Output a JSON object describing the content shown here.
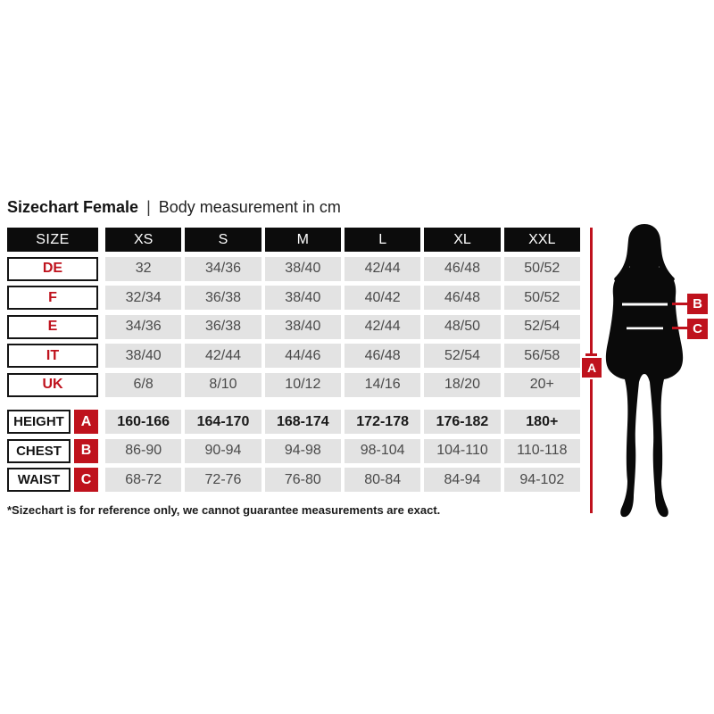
{
  "title": {
    "main": "Sizechart Female",
    "separator": "|",
    "subtitle": "Body measurement in cm"
  },
  "table": {
    "header": [
      "SIZE",
      "XS",
      "S",
      "M",
      "L",
      "XL",
      "XXL"
    ],
    "size_rows": [
      {
        "label": "DE",
        "values": [
          "32",
          "34/36",
          "38/40",
          "42/44",
          "46/48",
          "50/52"
        ]
      },
      {
        "label": "F",
        "values": [
          "32/34",
          "36/38",
          "38/40",
          "40/42",
          "46/48",
          "50/52"
        ]
      },
      {
        "label": "E",
        "values": [
          "34/36",
          "36/38",
          "38/40",
          "42/44",
          "48/50",
          "52/54"
        ]
      },
      {
        "label": "IT",
        "values": [
          "38/40",
          "42/44",
          "44/46",
          "46/48",
          "52/54",
          "56/58"
        ]
      },
      {
        "label": "UK",
        "values": [
          "6/8",
          "8/10",
          "10/12",
          "14/16",
          "18/20",
          "20+"
        ]
      }
    ],
    "body_rows": [
      {
        "label": "HEIGHT",
        "marker": "A",
        "bold": true,
        "values": [
          "160-166",
          "164-170",
          "168-174",
          "172-178",
          "176-182",
          "180+"
        ]
      },
      {
        "label": "CHEST",
        "marker": "B",
        "bold": false,
        "values": [
          "86-90",
          "90-94",
          "94-98",
          "98-104",
          "104-110",
          "110-118"
        ]
      },
      {
        "label": "WAIST",
        "marker": "C",
        "bold": false,
        "values": [
          "68-72",
          "72-76",
          "76-80",
          "80-84",
          "84-94",
          "94-102"
        ]
      }
    ]
  },
  "footnote": "*Sizechart is for reference only, we cannot guarantee measurements are exact.",
  "figure": {
    "markers": {
      "height": "A",
      "chest": "B",
      "waist": "C"
    }
  },
  "colors": {
    "accent_red": "#bf121d",
    "header_black": "#0c0c0c",
    "cell_gray": "#e3e3e3",
    "value_text": "#4a4a4a"
  },
  "chart_data": {
    "type": "table",
    "title": "Sizechart Female | Body measurement in cm",
    "columns": [
      "SIZE",
      "XS",
      "S",
      "M",
      "L",
      "XL",
      "XXL"
    ],
    "rows": [
      [
        "DE",
        "32",
        "34/36",
        "38/40",
        "42/44",
        "46/48",
        "50/52"
      ],
      [
        "F",
        "32/34",
        "36/38",
        "38/40",
        "40/42",
        "46/48",
        "50/52"
      ],
      [
        "E",
        "34/36",
        "36/38",
        "38/40",
        "42/44",
        "48/50",
        "52/54"
      ],
      [
        "IT",
        "38/40",
        "42/44",
        "44/46",
        "46/48",
        "52/54",
        "56/58"
      ],
      [
        "UK",
        "6/8",
        "8/10",
        "10/12",
        "14/16",
        "18/20",
        "20+"
      ],
      [
        "HEIGHT (A)",
        "160-166",
        "164-170",
        "168-174",
        "172-178",
        "176-182",
        "180+"
      ],
      [
        "CHEST (B)",
        "86-90",
        "90-94",
        "94-98",
        "98-104",
        "104-110",
        "110-118"
      ],
      [
        "WAIST (C)",
        "68-72",
        "72-76",
        "76-80",
        "80-84",
        "84-94",
        "94-102"
      ]
    ],
    "footnote": "*Sizechart is for reference only, we cannot guarantee measurements are exact."
  }
}
